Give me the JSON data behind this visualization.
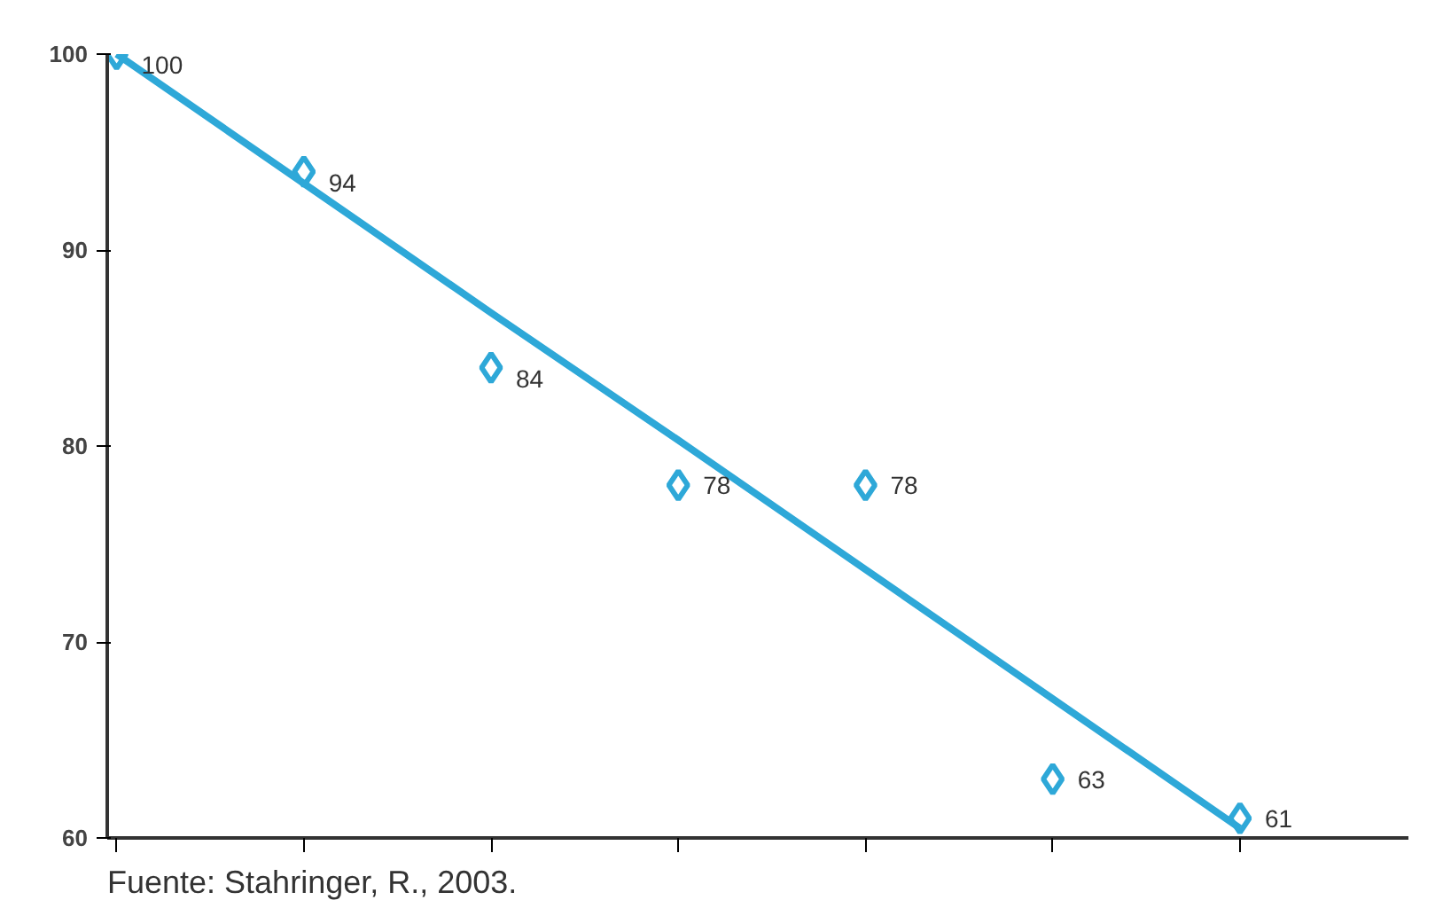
{
  "chart_data": {
    "type": "scatter",
    "categories": [
      null,
      null,
      null,
      null,
      null,
      null,
      null
    ],
    "series": [
      {
        "color": "#2ea8d8",
        "values": [
          100,
          94,
          84,
          78,
          78,
          63,
          61
        ],
        "marker": "diamond",
        "value_labels": [
          "100",
          "94",
          "84",
          "78",
          "78",
          "63",
          "61"
        ]
      },
      {
        "type": "line",
        "color": "#2ea8d8",
        "values": [
          100,
          93.4,
          86.8,
          80.3,
          73.7,
          67.1,
          60.5
        ],
        "marker": "none",
        "line_style": "solid"
      }
    ],
    "ylim": [
      60,
      100
    ],
    "yticks": [
      60,
      70,
      80,
      90,
      100
    ],
    "grid": false,
    "annotations": [
      "Fuente: Stahringer, R., 2003."
    ]
  }
}
